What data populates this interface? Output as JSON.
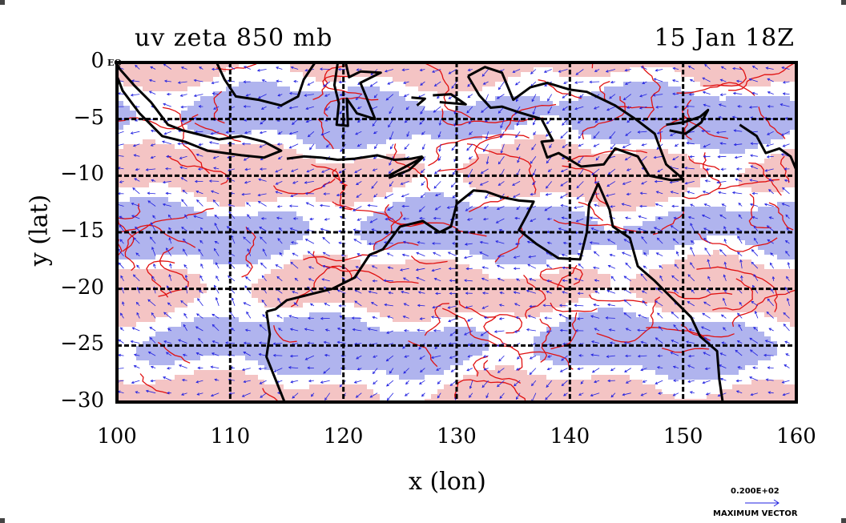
{
  "title_left": "uv zeta 850 mb",
  "title_right": "15 Jan 18Z",
  "corner_mark": "EQ",
  "chart_data": {
    "type": "vector-contour-map",
    "title": "uv zeta 850 mb",
    "subtitle": "15 Jan 18Z",
    "xlabel": "x (lon)",
    "ylabel": "y (lat)",
    "xlim": [
      100,
      160
    ],
    "ylim": [
      -30,
      0
    ],
    "x_ticks": [
      "100",
      "110",
      "120",
      "130",
      "140",
      "150",
      "160"
    ],
    "y_ticks": [
      "0",
      "−5",
      "−10",
      "−15",
      "−20",
      "−25",
      "−30"
    ],
    "grid": true,
    "positive_fill": "#f4c4c4",
    "negative_fill": "#b0b4ee",
    "contour_color": "#e01010",
    "vector_color": "#2020e0",
    "coast_color": "#000000",
    "reference_vector": {
      "value": "0.200E+02",
      "caption": "MAXIMUM VECTOR"
    }
  }
}
